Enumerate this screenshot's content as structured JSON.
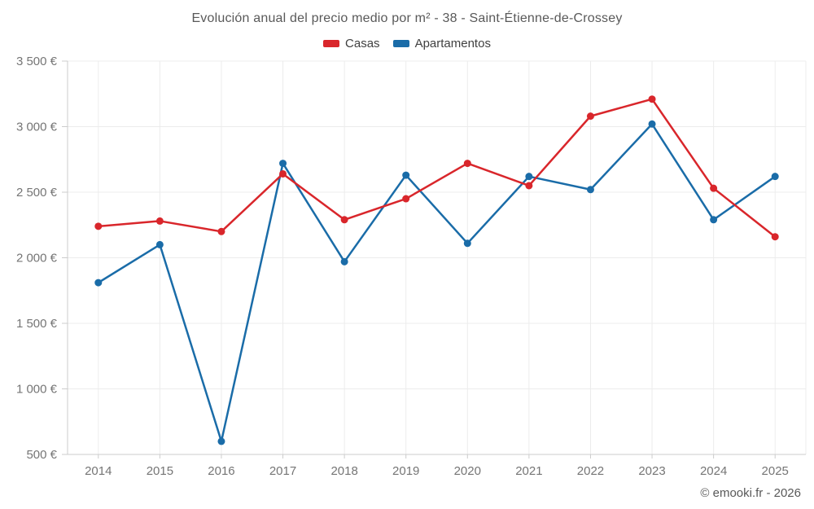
{
  "header": {
    "title": "Evolución anual del precio medio por m² - 38 - Saint-Étienne-de-Crossey"
  },
  "legend": [
    {
      "label": "Casas",
      "color": "#d9262b"
    },
    {
      "label": "Apartamentos",
      "color": "#1a6ca8"
    }
  ],
  "footer": {
    "credit": "© emooki.fr - 2026"
  },
  "chart_data": {
    "type": "line",
    "title": "Evolución anual del precio medio por m² - 38 - Saint-Étienne-de-Crossey",
    "x": [
      2014,
      2015,
      2016,
      2017,
      2018,
      2019,
      2020,
      2021,
      2022,
      2023,
      2024,
      2025
    ],
    "series": [
      {
        "name": "Casas",
        "color": "#d9262b",
        "values": [
          2240,
          2280,
          2200,
          2640,
          2290,
          2450,
          2720,
          2550,
          3080,
          3210,
          2530,
          2160
        ]
      },
      {
        "name": "Apartamentos",
        "color": "#1a6ca8",
        "values": [
          1810,
          2100,
          600,
          2720,
          1970,
          2630,
          2110,
          2620,
          2520,
          3020,
          2290,
          2620
        ]
      }
    ],
    "xlabel": "",
    "ylabel": "",
    "ylim": [
      500,
      3500
    ],
    "y_ticks": [
      500,
      1000,
      1500,
      2000,
      2500,
      3000,
      3500
    ],
    "y_tick_labels": [
      "500 €",
      "1 000 €",
      "1 500 €",
      "2 000 €",
      "2 500 €",
      "3 000 €",
      "3 500 €"
    ],
    "grid": true,
    "legend_position": "top"
  }
}
